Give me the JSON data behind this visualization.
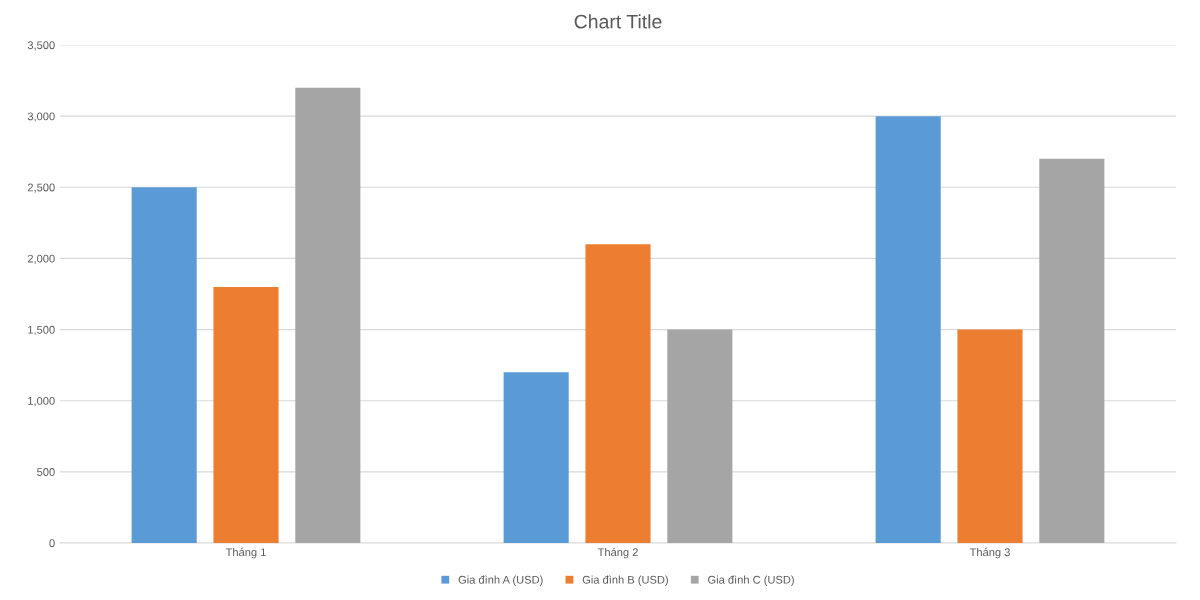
{
  "chart_data": {
    "type": "bar",
    "title": "Chart Title",
    "categories": [
      "Tháng 1",
      "Tháng 2",
      "Tháng 3"
    ],
    "series": [
      {
        "name": "Gia đình A (USD)",
        "color": "#5b9bd5",
        "values": [
          2500,
          1200,
          3000
        ]
      },
      {
        "name": "Gia đình B (USD)",
        "color": "#ed7d31",
        "values": [
          1800,
          2100,
          1500
        ]
      },
      {
        "name": "Gia đình C (USD)",
        "color": "#a5a5a5",
        "values": [
          3200,
          1500,
          2700
        ]
      }
    ],
    "ylim": [
      0,
      3500
    ],
    "yticks": [
      0,
      500,
      {
        "value": 1000,
        "label": "1,000"
      },
      {
        "value": 1500,
        "label": "1,500"
      },
      {
        "value": 2000,
        "label": "2,000"
      },
      {
        "value": 2500,
        "label": "2,500"
      },
      {
        "value": 3000,
        "label": "3,000"
      },
      {
        "value": 3500,
        "label": "3,500"
      }
    ],
    "grid": "y",
    "legend": "bottom"
  }
}
